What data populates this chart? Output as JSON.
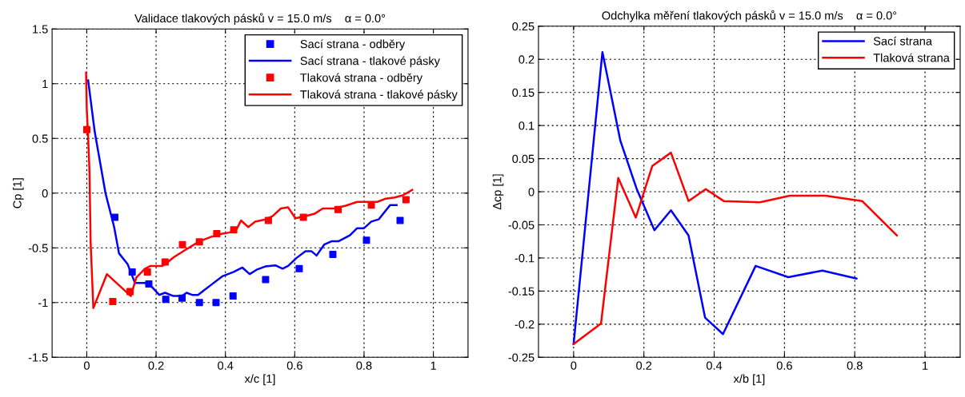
{
  "chart_data": [
    {
      "type": "line",
      "title": "Validace tlakových pásků v = 15.0 m/s    α = 0.0°",
      "xlabel": "x/c [1]",
      "ylabel": "Cp [1]",
      "xlim": [
        -0.1,
        1.1
      ],
      "xticks": [
        0,
        0.2,
        0.4,
        0.6,
        0.8,
        1
      ],
      "ylim": [
        -1.5,
        1.5
      ],
      "yticks": [
        -1.5,
        -1,
        -0.5,
        0,
        0.5,
        1,
        1.5
      ],
      "grid": true,
      "legend": "top right",
      "series": [
        {
          "name": "Sací strana - odběry",
          "type": "scatter",
          "marker": "square",
          "color": "#0000ff",
          "x": [
            0.081,
            0.131,
            0.179,
            0.228,
            0.275,
            0.325,
            0.373,
            0.422,
            0.516,
            0.613,
            0.71,
            0.807,
            0.904
          ],
          "values": [
            -0.22,
            -0.72,
            -0.83,
            -0.97,
            -0.96,
            -1.0,
            -1.0,
            -0.94,
            -0.79,
            -0.69,
            -0.56,
            -0.43,
            -0.25
          ]
        },
        {
          "name": "Sací strana - tlakové pásky",
          "color": "#0000ff",
          "x": [
            0.004,
            0.023,
            0.054,
            0.058,
            0.079,
            0.093,
            0.118,
            0.139,
            0.168,
            0.189,
            0.209,
            0.226,
            0.25,
            0.275,
            0.288,
            0.304,
            0.321,
            0.358,
            0.391,
            0.424,
            0.449,
            0.47,
            0.49,
            0.515,
            0.544,
            0.565,
            0.581,
            0.606,
            0.631,
            0.648,
            0.663,
            0.685,
            0.706,
            0.726,
            0.759,
            0.78,
            0.8,
            0.821,
            0.842,
            0.875,
            0.894
          ],
          "values": [
            1.03,
            0.56,
            0.0,
            -0.05,
            -0.31,
            -0.55,
            -0.65,
            -0.82,
            -0.82,
            -0.86,
            -0.93,
            -0.91,
            -0.94,
            -0.94,
            -0.91,
            -0.93,
            -0.93,
            -0.84,
            -0.76,
            -0.72,
            -0.68,
            -0.74,
            -0.7,
            -0.67,
            -0.66,
            -0.69,
            -0.665,
            -0.59,
            -0.53,
            -0.53,
            -0.57,
            -0.47,
            -0.44,
            -0.44,
            -0.385,
            -0.32,
            -0.32,
            -0.26,
            -0.24,
            -0.11,
            -0.11
          ]
        },
        {
          "name": "Tlaková strana - odběry",
          "type": "scatter",
          "marker": "square",
          "color": "#ff0000",
          "x": [
            0,
            0.075,
            0.125,
            0.175,
            0.226,
            0.276,
            0.325,
            0.375,
            0.424,
            0.524,
            0.625,
            0.725,
            0.821,
            0.921
          ],
          "values": [
            0.58,
            -0.99,
            -0.9,
            -0.72,
            -0.63,
            -0.47,
            -0.445,
            -0.37,
            -0.335,
            -0.25,
            -0.22,
            -0.15,
            -0.11,
            -0.06
          ]
        },
        {
          "name": "Tlaková strana - tlakové pásky",
          "color": "#ff0000",
          "x": [
            -0.002,
            0.0,
            0.004,
            0.008,
            0.011,
            0.019,
            0.058,
            0.127,
            0.143,
            0.168,
            0.184,
            0.218,
            0.23,
            0.251,
            0.284,
            0.325,
            0.358,
            0.391,
            0.412,
            0.433,
            0.445,
            0.466,
            0.486,
            0.515,
            0.536,
            0.56,
            0.581,
            0.602,
            0.631,
            0.656,
            0.681,
            0.714,
            0.747,
            0.78,
            0.838,
            0.863,
            0.888,
            0.912,
            0.939
          ],
          "values": [
            1.1,
            0.77,
            0.51,
            0.18,
            -0.44,
            -1.05,
            -0.74,
            -0.94,
            -0.77,
            -0.69,
            -0.665,
            -0.665,
            -0.64,
            -0.585,
            -0.52,
            -0.44,
            -0.4,
            -0.37,
            -0.36,
            -0.325,
            -0.25,
            -0.31,
            -0.26,
            -0.24,
            -0.21,
            -0.14,
            -0.13,
            -0.23,
            -0.21,
            -0.19,
            -0.14,
            -0.14,
            -0.115,
            -0.08,
            -0.08,
            -0.05,
            -0.04,
            -0.02,
            0.03
          ]
        }
      ]
    },
    {
      "type": "line",
      "title": "Odchylka měření tlakových pásků v = 15.0 m/s    α = 0.0°",
      "xlabel": "x/b [1]",
      "ylabel": "Δcp [1]",
      "xlim": [
        -0.1,
        1.1
      ],
      "xticks": [
        0,
        0.2,
        0.4,
        0.6,
        0.8,
        1
      ],
      "ylim": [
        -0.25,
        0.25
      ],
      "yticks": [
        -0.25,
        -0.2,
        -0.15,
        -0.1,
        -0.05,
        0,
        0.05,
        0.1,
        0.15,
        0.2,
        0.25
      ],
      "grid": true,
      "legend": "top right",
      "series": [
        {
          "name": "Sací strana",
          "color": "#0000ff",
          "x": [
            0,
            0.082,
            0.133,
            0.179,
            0.23,
            0.277,
            0.327,
            0.374,
            0.425,
            0.518,
            0.611,
            0.708,
            0.805
          ],
          "values": [
            -0.23,
            0.211,
            0.077,
            0.005,
            -0.058,
            -0.028,
            -0.066,
            -0.19,
            -0.215,
            -0.112,
            -0.129,
            -0.119,
            -0.131
          ]
        },
        {
          "name": "Tlaková strana",
          "color": "#ff0000",
          "x": [
            0,
            0.078,
            0.127,
            0.177,
            0.224,
            0.277,
            0.327,
            0.376,
            0.427,
            0.53,
            0.615,
            0.717,
            0.821,
            0.92
          ],
          "values": [
            -0.23,
            -0.199,
            0.021,
            -0.039,
            0.039,
            0.059,
            -0.014,
            0.004,
            -0.014,
            -0.016,
            -0.006,
            -0.006,
            -0.014,
            -0.066
          ]
        }
      ]
    }
  ]
}
